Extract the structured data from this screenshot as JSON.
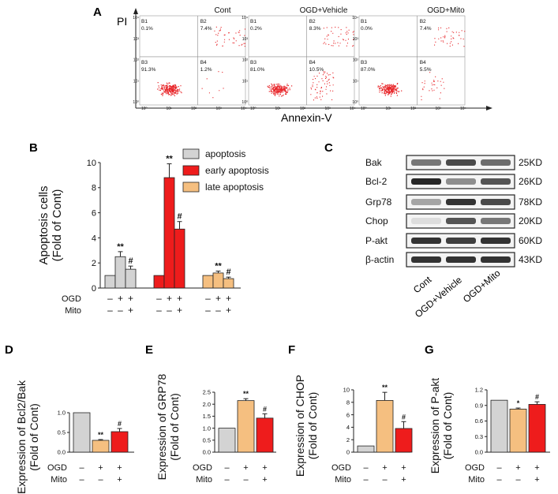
{
  "panel_labels": {
    "A": "A",
    "B": "B",
    "C": "C",
    "D": "D",
    "E": "E",
    "F": "F",
    "G": "G"
  },
  "flow": {
    "y_axis_label": "PI",
    "x_axis_label": "Annexin-V",
    "tick_labels": [
      "10⁰",
      "10¹",
      "10²",
      "10³",
      "10⁴"
    ],
    "panels": [
      {
        "title": "Cont",
        "B1": "B1",
        "B1_val": "0.1%",
        "B2": "B2",
        "B2_val": "7.4%",
        "B3": "B3",
        "B3_val": "91.3%",
        "B4": "B4",
        "B4_val": "1.2%"
      },
      {
        "title": "OGD+Vehicle",
        "B1": "B1",
        "B1_val": "0.2%",
        "B2": "B2",
        "B2_val": "8.3%",
        "B3": "B3",
        "B3_val": "81.0%",
        "B4": "B4",
        "B4_val": "10.5%"
      },
      {
        "title": "OGD+Mito",
        "B1": "B1",
        "B1_val": "0.0%",
        "B2": "B2",
        "B2_val": "7.4%",
        "B3": "B3",
        "B3_val": "87.0%",
        "B4": "B4",
        "B4_val": "5.5%"
      }
    ]
  },
  "blot": {
    "proteins": [
      "Bak",
      "Bcl-2",
      "Grp78",
      "Chop",
      "P-akt",
      "β-actin"
    ],
    "sizes": [
      "25KD",
      "26KD",
      "78KD",
      "20KD",
      "60KD",
      "43KD"
    ],
    "lanes": [
      "Cont",
      "OGD+Vehicle",
      "OGD+Mito"
    ]
  },
  "treat": {
    "ogd_label": "OGD",
    "mito_label": "Mito",
    "minus": "–",
    "plus": "+",
    "ogd": [
      "–",
      "+",
      "+"
    ],
    "mito": [
      "–",
      "–",
      "+"
    ]
  },
  "colors": {
    "grey": "#d3d3d3",
    "red": "#ee1c1c",
    "tan": "#f5bf80",
    "dark": "#222222"
  },
  "chart_data": [
    {
      "id": "B",
      "type": "bar",
      "ylabel": "Apoptosis cells\n(Fold of Cont)",
      "ylabel_line1": "Apoptosis cells",
      "ylabel_line2": "(Fold of Cont)",
      "ylim": [
        0,
        10
      ],
      "yticks": [
        0,
        2,
        4,
        6,
        8,
        10
      ],
      "ytick_labels": [
        "0",
        "2",
        "4",
        "6",
        "8",
        "10"
      ],
      "legend": [
        "apoptosis",
        "early apoptosis",
        "late apoptosis"
      ],
      "series": [
        {
          "name": "apoptosis",
          "color": "grey",
          "values": [
            1.0,
            2.5,
            1.5
          ],
          "errors": [
            0,
            0.4,
            0.25
          ],
          "marks": [
            "",
            "**",
            "#"
          ]
        },
        {
          "name": "early apoptosis",
          "color": "red",
          "values": [
            1.0,
            8.8,
            4.7
          ],
          "errors": [
            0,
            1.1,
            0.6
          ],
          "marks": [
            "",
            "**",
            "#"
          ]
        },
        {
          "name": "late apoptosis",
          "color": "tan",
          "values": [
            1.0,
            1.2,
            0.75
          ],
          "errors": [
            0,
            0.15,
            0.12
          ],
          "marks": [
            "",
            "**",
            "#"
          ]
        }
      ]
    },
    {
      "id": "D",
      "type": "bar",
      "ylabel_line1": "Expression of Bcl2/Bak",
      "ylabel_line2": "(Fold of Cont)",
      "ylim": [
        0,
        1.0
      ],
      "yticks": [
        0,
        0.5,
        1.0
      ],
      "ytick_labels": [
        "0.0",
        "0.5",
        "1.0"
      ],
      "values": [
        1.0,
        0.3,
        0.52
      ],
      "errors": [
        0,
        0.02,
        0.08
      ],
      "colors": [
        "grey",
        "tan",
        "red"
      ],
      "marks": [
        "",
        "**",
        "#"
      ]
    },
    {
      "id": "E",
      "type": "bar",
      "ylabel_line1": "Expression of GRP78",
      "ylabel_line2": "(Fold of Cont)",
      "ylim": [
        0,
        2.5
      ],
      "yticks": [
        0,
        0.5,
        1.0,
        1.5,
        2.0,
        2.5
      ],
      "ytick_labels": [
        "0.0",
        "0.5",
        "1.0",
        "1.5",
        "2.0",
        "2.5"
      ],
      "values": [
        1.0,
        2.15,
        1.42
      ],
      "errors": [
        0,
        0.08,
        0.18
      ],
      "colors": [
        "grey",
        "tan",
        "red"
      ],
      "marks": [
        "",
        "**",
        "#"
      ]
    },
    {
      "id": "F",
      "type": "bar",
      "ylabel_line1": "Expression of CHOP",
      "ylabel_line2": "(Fold of Cont)",
      "ylim": [
        0,
        10
      ],
      "yticks": [
        0,
        2,
        4,
        6,
        8,
        10
      ],
      "ytick_labels": [
        "0",
        "2",
        "4",
        "6",
        "8",
        "10"
      ],
      "values": [
        1.0,
        8.3,
        3.8
      ],
      "errors": [
        0,
        1.3,
        1.1
      ],
      "colors": [
        "grey",
        "tan",
        "red"
      ],
      "marks": [
        "",
        "**",
        "#"
      ]
    },
    {
      "id": "G",
      "type": "bar",
      "ylabel_line1": "Expression of P-akt",
      "ylabel_line2": "(Fold of Cont)",
      "ylim": [
        0,
        1.2
      ],
      "yticks": [
        0,
        0.3,
        0.6,
        0.9,
        1.2
      ],
      "ytick_labels": [
        "0.0",
        "0.3",
        "0.6",
        "0.9",
        "1.2"
      ],
      "values": [
        1.0,
        0.83,
        0.92
      ],
      "errors": [
        0,
        0.02,
        0.05
      ],
      "colors": [
        "grey",
        "tan",
        "red"
      ],
      "marks": [
        "",
        "*",
        "#"
      ]
    }
  ]
}
